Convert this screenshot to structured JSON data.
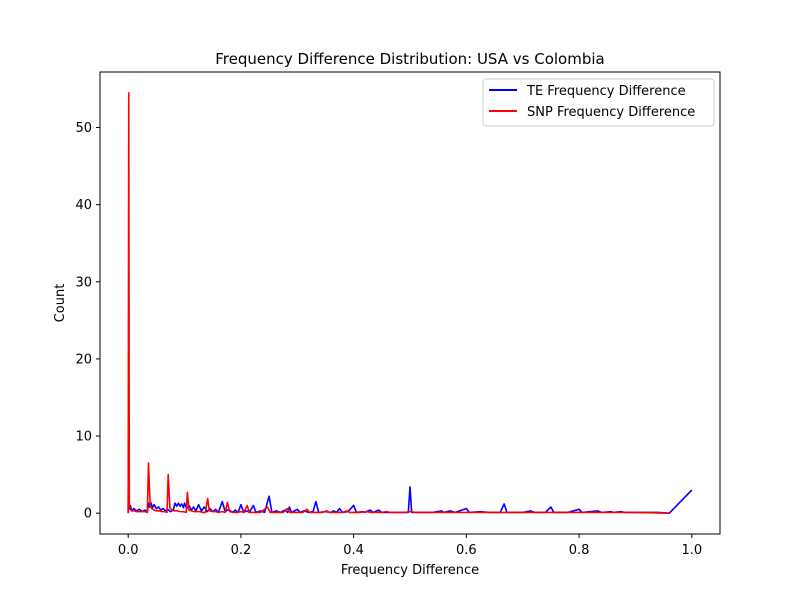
{
  "chart_data": {
    "type": "line",
    "title": "Frequency Difference Distribution: USA vs Colombia",
    "xlabel": "Frequency Difference",
    "ylabel": "Count",
    "xlim": [
      -0.05,
      1.05
    ],
    "ylim": [
      -2.7,
      57.2
    ],
    "xticks": [
      0.0,
      0.2,
      0.4,
      0.6,
      0.8,
      1.0
    ],
    "xtick_labels": [
      "0.0",
      "0.2",
      "0.4",
      "0.6",
      "0.8",
      "1.0"
    ],
    "yticks": [
      0,
      10,
      20,
      30,
      40,
      50
    ],
    "ytick_labels": [
      "0",
      "10",
      "20",
      "30",
      "40",
      "50"
    ],
    "grid": false,
    "legend_position": "top-right",
    "series": [
      {
        "name": "TE Frequency Difference",
        "color": "#0000ff",
        "points": [
          [
            0.0,
            0
          ],
          [
            0.001,
            12.6
          ],
          [
            0.002,
            0.5
          ],
          [
            0.004,
            1.0
          ],
          [
            0.006,
            0.3
          ],
          [
            0.01,
            0.6
          ],
          [
            0.015,
            0.3
          ],
          [
            0.02,
            0.5
          ],
          [
            0.025,
            0.2
          ],
          [
            0.03,
            0.4
          ],
          [
            0.034,
            0.1
          ],
          [
            0.036,
            1.3
          ],
          [
            0.038,
            0.8
          ],
          [
            0.04,
            1.4
          ],
          [
            0.043,
            0.7
          ],
          [
            0.046,
            1.1
          ],
          [
            0.05,
            0.6
          ],
          [
            0.054,
            0.8
          ],
          [
            0.058,
            0.4
          ],
          [
            0.062,
            0.6
          ],
          [
            0.066,
            0.3
          ],
          [
            0.07,
            0.5
          ],
          [
            0.075,
            0.2
          ],
          [
            0.08,
            0.4
          ],
          [
            0.083,
            1.3
          ],
          [
            0.086,
            0.9
          ],
          [
            0.089,
            1.3
          ],
          [
            0.092,
            0.9
          ],
          [
            0.095,
            1.2
          ],
          [
            0.098,
            0.7
          ],
          [
            0.1,
            1.3
          ],
          [
            0.104,
            0.6
          ],
          [
            0.108,
            1.0
          ],
          [
            0.112,
            0.4
          ],
          [
            0.116,
            0.8
          ],
          [
            0.12,
            0.3
          ],
          [
            0.125,
            1.1
          ],
          [
            0.13,
            0.3
          ],
          [
            0.135,
            0.8
          ],
          [
            0.14,
            0.2
          ],
          [
            0.145,
            0.6
          ],
          [
            0.15,
            0.2
          ],
          [
            0.155,
            0.5
          ],
          [
            0.16,
            0.1
          ],
          [
            0.167,
            1.5
          ],
          [
            0.172,
            0.2
          ],
          [
            0.178,
            0.5
          ],
          [
            0.185,
            0.1
          ],
          [
            0.19,
            0.4
          ],
          [
            0.195,
            0.1
          ],
          [
            0.2,
            1.1
          ],
          [
            0.205,
            0.1
          ],
          [
            0.21,
            0.3
          ],
          [
            0.215,
            0.1
          ],
          [
            0.222,
            1.0
          ],
          [
            0.227,
            0.1
          ],
          [
            0.235,
            0.3
          ],
          [
            0.242,
            0.1
          ],
          [
            0.25,
            2.2
          ],
          [
            0.255,
            0.1
          ],
          [
            0.263,
            0.3
          ],
          [
            0.27,
            0.1
          ],
          [
            0.278,
            0.4
          ],
          [
            0.283,
            0.1
          ],
          [
            0.286,
            0.8
          ],
          [
            0.29,
            0.1
          ],
          [
            0.3,
            0.5
          ],
          [
            0.305,
            0.1
          ],
          [
            0.312,
            0.3
          ],
          [
            0.32,
            0.1
          ],
          [
            0.328,
            0.2
          ],
          [
            0.333,
            1.5
          ],
          [
            0.338,
            0.1
          ],
          [
            0.35,
            0.2
          ],
          [
            0.36,
            0.1
          ],
          [
            0.364,
            0.3
          ],
          [
            0.37,
            0.1
          ],
          [
            0.375,
            0.6
          ],
          [
            0.38,
            0.1
          ],
          [
            0.39,
            0.2
          ],
          [
            0.4,
            1.0
          ],
          [
            0.405,
            0.1
          ],
          [
            0.415,
            0.2
          ],
          [
            0.42,
            0.1
          ],
          [
            0.429,
            0.4
          ],
          [
            0.435,
            0.1
          ],
          [
            0.444,
            0.4
          ],
          [
            0.45,
            0.1
          ],
          [
            0.46,
            0.1
          ],
          [
            0.47,
            0.1
          ],
          [
            0.48,
            0.1
          ],
          [
            0.49,
            0.1
          ],
          [
            0.497,
            0.1
          ],
          [
            0.5,
            3.4
          ],
          [
            0.503,
            0.1
          ],
          [
            0.52,
            0.1
          ],
          [
            0.54,
            0.1
          ],
          [
            0.556,
            0.3
          ],
          [
            0.56,
            0.1
          ],
          [
            0.571,
            0.3
          ],
          [
            0.58,
            0.1
          ],
          [
            0.6,
            0.6
          ],
          [
            0.605,
            0.1
          ],
          [
            0.625,
            0.2
          ],
          [
            0.64,
            0.1
          ],
          [
            0.66,
            0.1
          ],
          [
            0.667,
            1.2
          ],
          [
            0.672,
            0.1
          ],
          [
            0.7,
            0.1
          ],
          [
            0.714,
            0.3
          ],
          [
            0.72,
            0.1
          ],
          [
            0.74,
            0.1
          ],
          [
            0.75,
            0.8
          ],
          [
            0.755,
            0.1
          ],
          [
            0.78,
            0.1
          ],
          [
            0.8,
            0.5
          ],
          [
            0.805,
            0.1
          ],
          [
            0.833,
            0.3
          ],
          [
            0.84,
            0.1
          ],
          [
            0.857,
            0.2
          ],
          [
            0.86,
            0.1
          ],
          [
            0.875,
            0.2
          ],
          [
            0.88,
            0.1
          ],
          [
            0.9,
            0.1
          ],
          [
            0.92,
            0.1
          ],
          [
            0.94,
            0.1
          ],
          [
            0.96,
            0.0
          ],
          [
            1.0,
            3.0
          ]
        ]
      },
      {
        "name": "SNP Frequency Difference",
        "color": "#ff0000",
        "points": [
          [
            0.0,
            0
          ],
          [
            0.001,
            54.5
          ],
          [
            0.002,
            1.0
          ],
          [
            0.004,
            0.5
          ],
          [
            0.006,
            0.3
          ],
          [
            0.01,
            0.3
          ],
          [
            0.015,
            0.2
          ],
          [
            0.02,
            0.2
          ],
          [
            0.025,
            0.2
          ],
          [
            0.03,
            0.2
          ],
          [
            0.034,
            0.1
          ],
          [
            0.036,
            6.5
          ],
          [
            0.039,
            1.0
          ],
          [
            0.042,
            0.6
          ],
          [
            0.046,
            0.4
          ],
          [
            0.05,
            0.3
          ],
          [
            0.055,
            0.3
          ],
          [
            0.06,
            0.2
          ],
          [
            0.065,
            0.2
          ],
          [
            0.069,
            0.1
          ],
          [
            0.071,
            5.0
          ],
          [
            0.074,
            0.7
          ],
          [
            0.078,
            0.4
          ],
          [
            0.082,
            0.3
          ],
          [
            0.087,
            0.3
          ],
          [
            0.092,
            0.2
          ],
          [
            0.097,
            0.2
          ],
          [
            0.103,
            0.1
          ],
          [
            0.105,
            2.7
          ],
          [
            0.108,
            0.4
          ],
          [
            0.112,
            0.3
          ],
          [
            0.117,
            0.2
          ],
          [
            0.122,
            0.2
          ],
          [
            0.127,
            0.2
          ],
          [
            0.132,
            0.1
          ],
          [
            0.137,
            0.1
          ],
          [
            0.141,
            1.9
          ],
          [
            0.144,
            0.3
          ],
          [
            0.15,
            0.2
          ],
          [
            0.155,
            0.2
          ],
          [
            0.16,
            0.1
          ],
          [
            0.167,
            0.2
          ],
          [
            0.172,
            0.1
          ],
          [
            0.176,
            1.4
          ],
          [
            0.18,
            0.2
          ],
          [
            0.186,
            0.1
          ],
          [
            0.193,
            0.1
          ],
          [
            0.2,
            0.2
          ],
          [
            0.205,
            0.1
          ],
          [
            0.211,
            1.0
          ],
          [
            0.215,
            0.1
          ],
          [
            0.225,
            0.1
          ],
          [
            0.235,
            0.1
          ],
          [
            0.247,
            0.8
          ],
          [
            0.252,
            0.1
          ],
          [
            0.265,
            0.1
          ],
          [
            0.275,
            0.1
          ],
          [
            0.282,
            0.6
          ],
          [
            0.287,
            0.1
          ],
          [
            0.3,
            0.1
          ],
          [
            0.31,
            0.1
          ],
          [
            0.317,
            0.5
          ],
          [
            0.322,
            0.1
          ],
          [
            0.335,
            0.1
          ],
          [
            0.345,
            0.1
          ],
          [
            0.352,
            0.3
          ],
          [
            0.357,
            0.1
          ],
          [
            0.37,
            0.1
          ],
          [
            0.38,
            0.1
          ],
          [
            0.388,
            0.3
          ],
          [
            0.393,
            0.1
          ],
          [
            0.41,
            0.1
          ],
          [
            0.423,
            0.2
          ],
          [
            0.43,
            0.1
          ],
          [
            0.45,
            0.1
          ],
          [
            0.458,
            0.2
          ],
          [
            0.465,
            0.1
          ],
          [
            0.49,
            0.1
          ],
          [
            0.5,
            0.2
          ],
          [
            0.51,
            0.1
          ],
          [
            0.53,
            0.1
          ],
          [
            0.55,
            0.1
          ],
          [
            0.57,
            0.1
          ],
          [
            0.6,
            0.1
          ],
          [
            0.63,
            0.1
          ],
          [
            0.66,
            0.1
          ],
          [
            0.7,
            0.1
          ],
          [
            0.74,
            0.1
          ],
          [
            0.78,
            0.1
          ],
          [
            0.82,
            0.1
          ],
          [
            0.86,
            0.1
          ],
          [
            0.9,
            0.1
          ],
          [
            0.96,
            0.0
          ]
        ]
      }
    ]
  }
}
